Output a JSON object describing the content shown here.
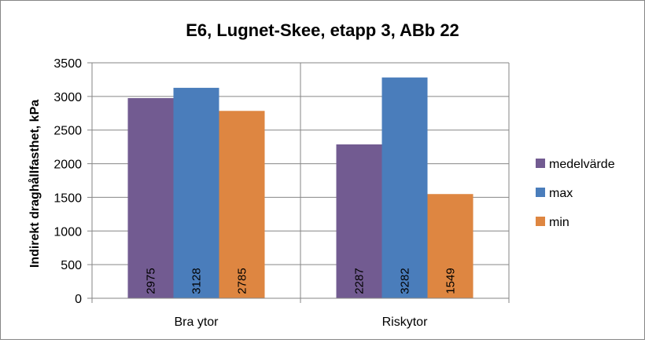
{
  "chart_data": {
    "type": "bar",
    "title": "E6, Lugnet-Skee, etapp 3, ABb 22",
    "xlabel": "",
    "ylabel": "Indirekt draghållfasthet, kPa",
    "categories": [
      "Bra ytor",
      "Riskytor"
    ],
    "series": [
      {
        "name": "medelvärde",
        "values": [
          2975,
          2287
        ],
        "color": "#725B91"
      },
      {
        "name": "max",
        "values": [
          3128,
          3282
        ],
        "color": "#4A7DBB"
      },
      {
        "name": "min",
        "values": [
          2785,
          1549
        ],
        "color": "#DE8641"
      }
    ],
    "ylim": [
      0,
      3500
    ],
    "yticks": [
      0,
      500,
      1000,
      1500,
      2000,
      2500,
      3000,
      3500
    ],
    "grid": true,
    "legend": "right",
    "data_labels": true
  }
}
